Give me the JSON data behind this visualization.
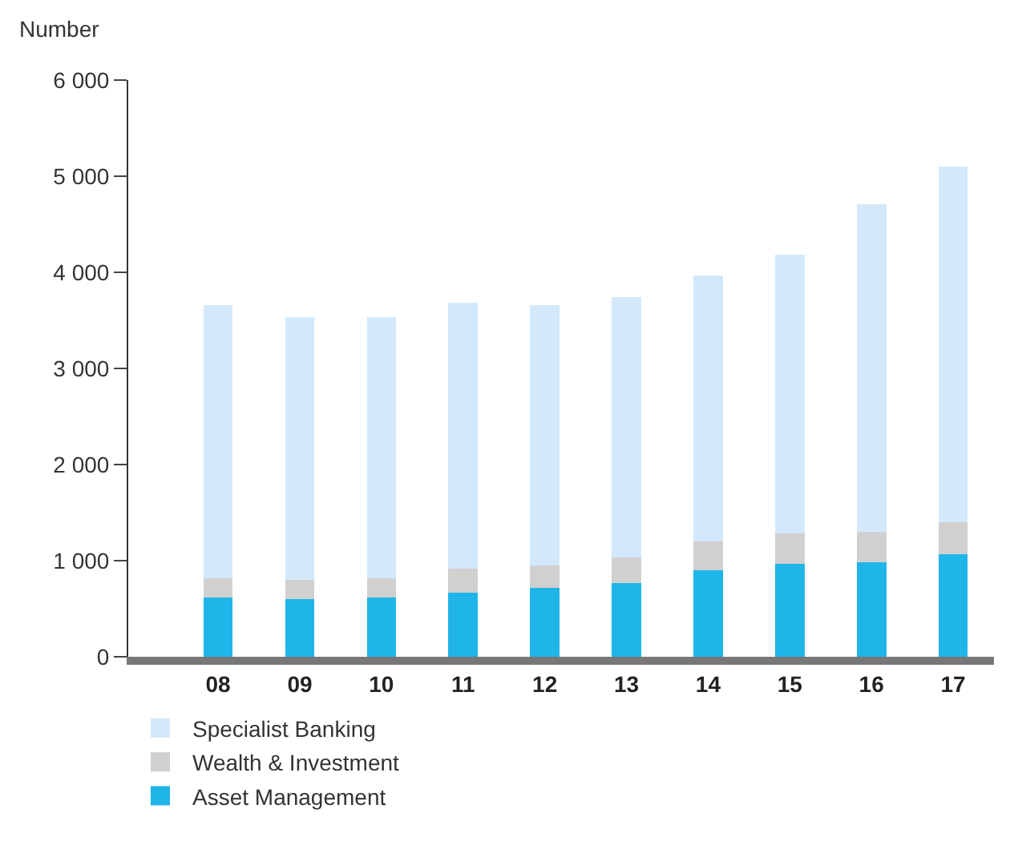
{
  "chart_data": {
    "type": "bar",
    "stacked": true,
    "ylabel": "Number",
    "categories": [
      "08",
      "09",
      "10",
      "11",
      "12",
      "13",
      "14",
      "15",
      "16",
      "17"
    ],
    "series": [
      {
        "name": "Asset Management",
        "color": "#1fb5e8",
        "values": [
          620,
          600,
          620,
          670,
          720,
          770,
          900,
          970,
          980,
          1070
        ]
      },
      {
        "name": "Wealth & Investment",
        "color": "#d0d0d0",
        "values": [
          200,
          200,
          200,
          250,
          230,
          260,
          300,
          310,
          320,
          330
        ]
      },
      {
        "name": "Specialist Banking",
        "color": "#d3e9fb",
        "values": [
          2840,
          2730,
          2710,
          2760,
          2710,
          2710,
          2770,
          2900,
          3410,
          3700
        ]
      }
    ],
    "ylim": [
      0,
      6000
    ],
    "yticks": [
      0,
      {
        "value": 1000,
        "label": "1 000"
      },
      {
        "value": 2000,
        "label": "2 000"
      },
      {
        "value": 3000,
        "label": "3 000"
      },
      {
        "value": 4000,
        "label": "4 000"
      },
      {
        "value": 5000,
        "label": "5 000"
      },
      {
        "value": 6000,
        "label": "6 000"
      }
    ],
    "legend": "bottom"
  }
}
